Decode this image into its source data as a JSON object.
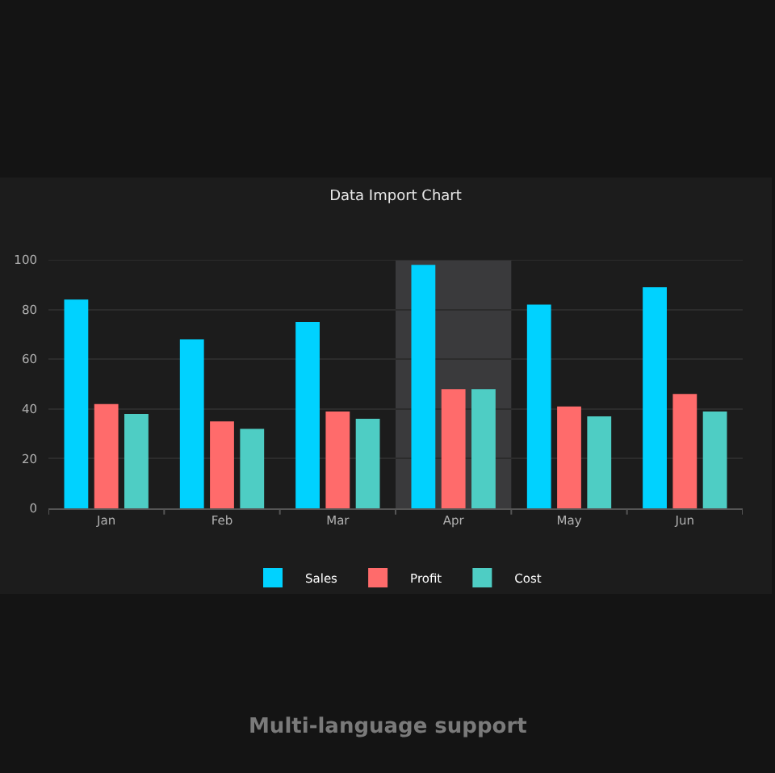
{
  "chart_data": {
    "type": "bar",
    "title": "Data Import Chart",
    "categories": [
      "Jan",
      "Feb",
      "Mar",
      "Apr",
      "May",
      "Jun"
    ],
    "series": [
      {
        "name": "Sales",
        "color": "#00d2ff",
        "values": [
          84,
          68,
          75,
          98,
          82,
          89
        ]
      },
      {
        "name": "Profit",
        "color": "#ff6b6b",
        "values": [
          42,
          35,
          39,
          48,
          41,
          46
        ]
      },
      {
        "name": "Cost",
        "color": "#4ecdc4",
        "values": [
          38,
          32,
          36,
          48,
          37,
          39
        ]
      }
    ],
    "ylim": [
      0,
      100
    ],
    "yticks": [
      0,
      20,
      40,
      60,
      80,
      100
    ],
    "grid": "y",
    "legend": "bottom",
    "bands": [
      {
        "axis": "x",
        "from": "Apr",
        "to": "Apr",
        "color": "#3a3a3c"
      }
    ],
    "annotations": [
      "Multi-language support"
    ]
  }
}
